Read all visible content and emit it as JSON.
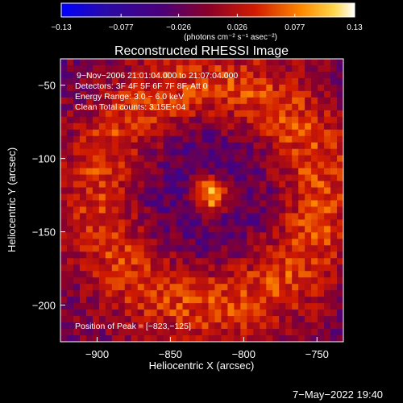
{
  "chart_data": {
    "type": "heatmap",
    "title": "Reconstructed RHESSI Image",
    "xlabel": "Heliocentric X (arcsec)",
    "ylabel": "Heliocentric Y (arcsec)",
    "xlim": [
      -925,
      -732
    ],
    "ylim": [
      -225,
      -32
    ],
    "xticks": [
      {
        "value": -900,
        "label": "−900"
      },
      {
        "value": -850,
        "label": "−850"
      },
      {
        "value": -800,
        "label": "−800"
      },
      {
        "value": -750,
        "label": "−750"
      }
    ],
    "yticks": [
      {
        "value": -50,
        "label": "−50"
      },
      {
        "value": -100,
        "label": "−100"
      },
      {
        "value": -150,
        "label": "−150"
      },
      {
        "value": -200,
        "label": "−200"
      }
    ],
    "colorbar": {
      "range": [
        -0.13,
        0.13
      ],
      "ticks": [
        {
          "value": -0.13,
          "label": "−0.13"
        },
        {
          "value": -0.077,
          "label": "−0.077"
        },
        {
          "value": -0.026,
          "label": "−0.026"
        },
        {
          "value": 0.026,
          "label": "0.026"
        },
        {
          "value": 0.077,
          "label": "0.077"
        },
        {
          "value": 0.13,
          "label": "0.13"
        }
      ],
      "units_label": "(photons cm⁻² s⁻¹ asec⁻²)"
    },
    "info_lines": [
      "9−Nov−2006 21:01:04.000 to 21:07:04.000",
      "Detectors: 3F 4F 5F 6F 7F 8F, Att 0",
      "Energy Range: 3.0 − 6.0 keV",
      "Clean     Total counts: 3.15E+04"
    ],
    "peak_label": "Position of Peak = [−823,−125]",
    "peak": {
      "x": -823,
      "y": -125,
      "value": 0.13
    },
    "image_features": [
      {
        "kind": "core",
        "center": [
          -823,
          -125
        ],
        "radius": 9,
        "value": 0.13
      },
      {
        "kind": "ring",
        "center": [
          -823,
          -125
        ],
        "radius": 74,
        "width": 20,
        "value": 0.07
      },
      {
        "kind": "inner_depression",
        "center": [
          -835,
          -120
        ],
        "radius": 48,
        "value": -0.03
      }
    ],
    "grid": false
  },
  "footer": {
    "timestamp": "7−May−2022 19:40"
  }
}
